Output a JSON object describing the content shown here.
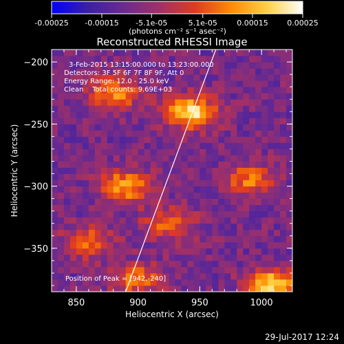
{
  "colorbar": {
    "tick_labels": [
      "-0.00025",
      "-0.00015",
      "-5.1e-05",
      "5.1e-05",
      "0.00015",
      "0.00025"
    ],
    "tick_values": [
      -0.00025,
      -0.00015,
      -5.1e-05,
      5.1e-05,
      0.00015,
      0.00025
    ],
    "range": [
      -0.00025,
      0.00025
    ],
    "unit_label": "(photons cm⁻² s⁻¹ asec⁻²)",
    "colors": [
      "#0000ff",
      "#3a1fa8",
      "#6a2a8f",
      "#a03068",
      "#e03a20",
      "#ff8a00",
      "#ffd040",
      "#ffffff"
    ]
  },
  "chart_data": {
    "type": "heatmap",
    "title": "Reconstructed RHESSI Image",
    "xlabel": "Heliocentric X (arcsec)",
    "ylabel": "Heliocentric Y (arcsec)",
    "xlim": [
      830,
      1025
    ],
    "ylim": [
      -385,
      -190
    ],
    "x_ticks": [
      850,
      900,
      950,
      1000
    ],
    "y_ticks": [
      -200,
      -250,
      -300,
      -350
    ],
    "x_tick_labels": [
      "850",
      "900",
      "950",
      "1000"
    ],
    "y_tick_labels": [
      "−200",
      "−250",
      "−300",
      "−350"
    ],
    "annotations": [
      "3-Feb-2015 13:15:00.000 to 13:23:00.000",
      "Detectors: 3F 5F 6F 7F 8F 9F, Att 0",
      "Energy Range: 12.0 - 25.0 keV",
      "Clean    Total counts: 9.69E+03"
    ],
    "peak_label": "Position of Peak = [942,-240]",
    "peak": {
      "x": 942,
      "y": -240
    },
    "limb_line": [
      [
        890,
        -385
      ],
      [
        963,
        -190
      ]
    ],
    "bright_sources": [
      {
        "x": 942,
        "y": -240,
        "intensity": 1.0
      },
      {
        "x": 1010,
        "y": -380,
        "intensity": 0.95
      },
      {
        "x": 880,
        "y": -225,
        "intensity": 0.7
      },
      {
        "x": 890,
        "y": -300,
        "intensity": 0.75
      },
      {
        "x": 990,
        "y": -295,
        "intensity": 0.6
      },
      {
        "x": 925,
        "y": -330,
        "intensity": 0.55
      },
      {
        "x": 860,
        "y": -345,
        "intensity": 0.5
      },
      {
        "x": 900,
        "y": -375,
        "intensity": 0.6
      }
    ]
  },
  "footer": {
    "timestamp": "29-Jul-2017 12:24"
  }
}
